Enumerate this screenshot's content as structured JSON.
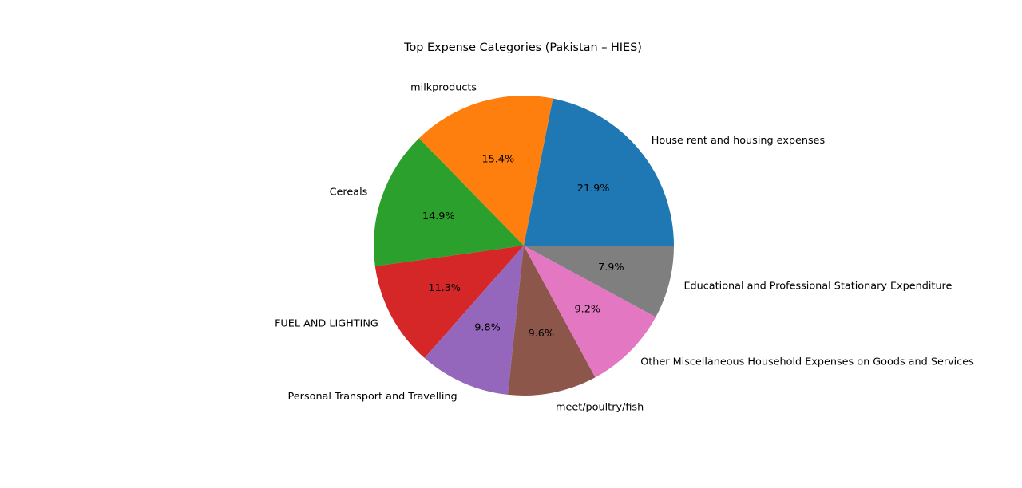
{
  "chart_data": {
    "type": "pie",
    "title": "Top Expense Categories (Pakistan – HIES)",
    "start_angle_deg": 0,
    "direction": "counterclockwise",
    "slices": [
      {
        "label": "House rent and housing expenses",
        "value": 21.9,
        "pct_label": "21.9%",
        "color": "#1f77b4"
      },
      {
        "label": "milkproducts",
        "value": 15.4,
        "pct_label": "15.4%",
        "color": "#ff7f0e"
      },
      {
        "label": "Cereals",
        "value": 14.9,
        "pct_label": "14.9%",
        "color": "#2ca02c"
      },
      {
        "label": "FUEL AND LIGHTING",
        "value": 11.3,
        "pct_label": "11.3%",
        "color": "#d62728"
      },
      {
        "label": "Personal Transport and Travelling",
        "value": 9.8,
        "pct_label": "9.8%",
        "color": "#9467bd"
      },
      {
        "label": "meet/poultry/fish",
        "value": 9.6,
        "pct_label": "9.6%",
        "color": "#8c564b"
      },
      {
        "label": "Other Miscellaneous Household Expenses on Goods and Services",
        "value": 9.2,
        "pct_label": "9.2%",
        "color": "#e377c2"
      },
      {
        "label": "Educational and Professional Stationary Expenditure",
        "value": 7.9,
        "pct_label": "7.9%",
        "color": "#7f7f7f"
      }
    ]
  }
}
